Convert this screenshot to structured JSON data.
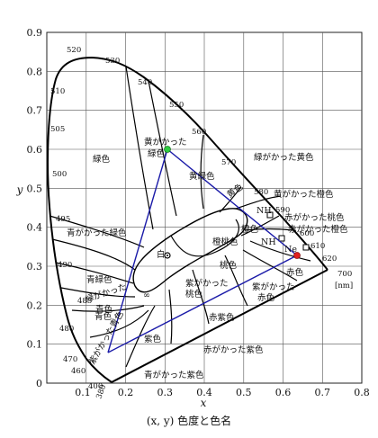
{
  "axes": {
    "x_label": "x",
    "y_label": "y",
    "x_ticks": [
      "0.1",
      "0.2",
      "0.3",
      "0.4",
      "0.5",
      "0.6",
      "0.7",
      "0.8"
    ],
    "y_ticks": [
      "0",
      "0.1",
      "0.2",
      "0.3",
      "0.4",
      "0.5",
      "0.6",
      "0.7",
      "0.8",
      "0.9"
    ],
    "xlim": [
      0,
      0.8
    ],
    "ylim": [
      0,
      0.9
    ]
  },
  "caption": "(x, y) 色度と色名",
  "locus_labels": {
    "w380": "380",
    "w400": "400",
    "w460": "460",
    "w470": "470",
    "w480": "480",
    "w485": "485",
    "w490": "490",
    "w495": "495",
    "w500": "500",
    "w505": "505",
    "w510": "510",
    "w520": "520",
    "w530": "530",
    "w540": "540",
    "w550": "550",
    "w560": "560",
    "w570": "570",
    "w580": "580",
    "w590": "590",
    "w600": "600",
    "w610": "610",
    "w620": "620",
    "w700": "700"
  },
  "unit_label": "[nm]",
  "regions": {
    "green": "緑色",
    "yellowish_green_1": "黄がかった",
    "yellowish_green_2": "緑色",
    "greenish_yellow": "緑がかった黄色",
    "yellowish_orange": "黄がかった橙色",
    "yellow_green_small": "黄緑色",
    "yellow": "黄色",
    "bluish_green": "青がかった緑色",
    "blue_green": "青緑色",
    "greenish_blue_1": "緑がかった",
    "greenish_blue_2": "青色",
    "blue": "青色",
    "purplish_blue": "紫がかった青色",
    "violet": "紫色",
    "bluish_purple": "青がかった紫色",
    "reddish_purple": "赤がかった紫色",
    "red_purple": "赤紫色",
    "purplish_pink_1": "紫がかった",
    "purplish_pink_2": "桃色",
    "pink": "桃色",
    "orange_pink": "橙桃色",
    "orange": "橙色",
    "reddish_orange": "赤がかった橙色",
    "purplish_red_1": "紫がかった",
    "purplish_red_2": "赤色",
    "red": "赤色",
    "reddish_pink": "赤がかった桃色",
    "white": "白",
    "nh_upper": "NH",
    "nh_lower": "NH",
    "ne": "Ne",
    "infinity": "∞"
  },
  "colors": {
    "locus": "#000000",
    "grid": "#555555",
    "blue_lines": "#1a1aa8",
    "green_dot": "#2ecc40",
    "red_dot": "#e02020"
  }
}
